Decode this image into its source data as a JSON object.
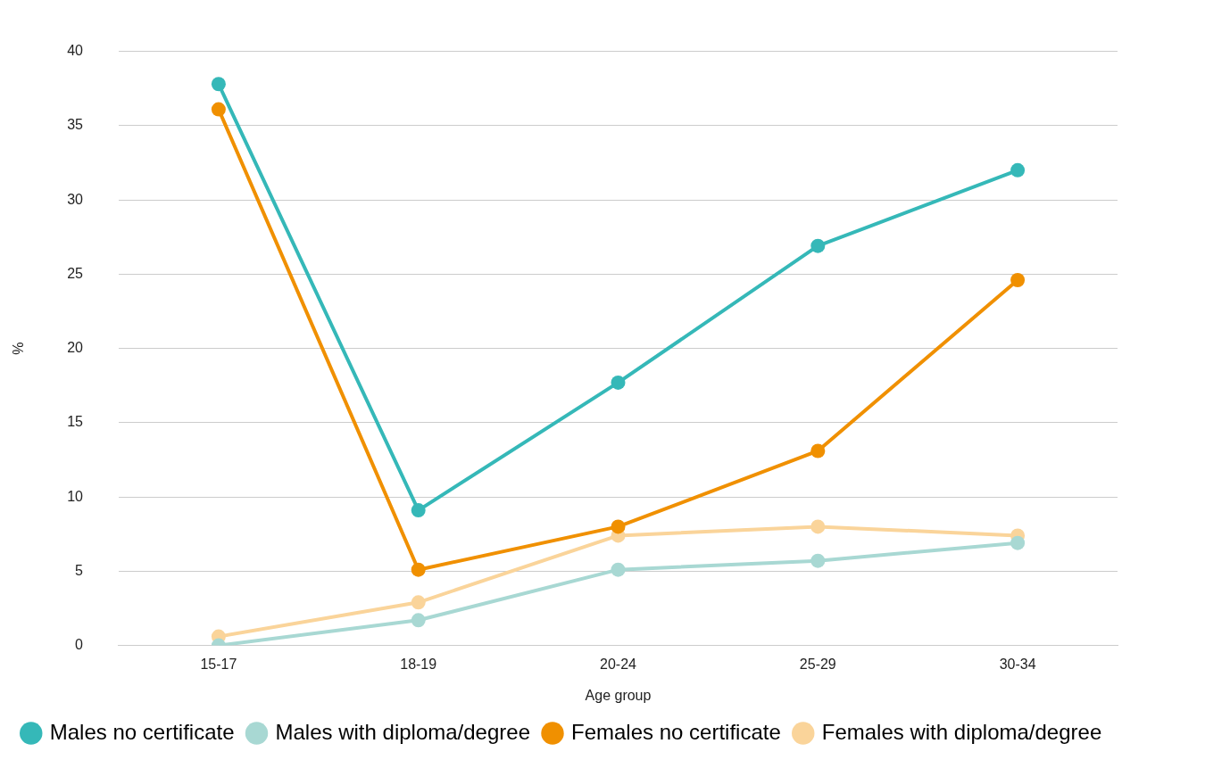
{
  "chart_data": {
    "type": "line",
    "xlabel": "Age group",
    "ylabel": "%",
    "categories": [
      "15-17",
      "18-19",
      "20-24",
      "25-29",
      "30-34"
    ],
    "ylim": [
      0,
      40
    ],
    "yticks": [
      0,
      5,
      10,
      15,
      20,
      25,
      30,
      35,
      40
    ],
    "grid": "y",
    "legend": "bottom",
    "marker": "circle",
    "line_style": "solid",
    "series": [
      {
        "name": "Males no certificate",
        "color": "#35b8b8",
        "values": [
          37.8,
          9.1,
          17.7,
          26.9,
          32.0
        ]
      },
      {
        "name": "Males with diploma/degree",
        "color": "#a8d8d3",
        "values": [
          0,
          1.7,
          5.1,
          5.7,
          6.9
        ]
      },
      {
        "name": "Females no certificate",
        "color": "#f09000",
        "values": [
          36.1,
          5.1,
          8.0,
          13.1,
          24.6
        ]
      },
      {
        "name": "Females with diploma/degree",
        "color": "#fad49a",
        "values": [
          0.6,
          2.9,
          7.4,
          8.0,
          7.4
        ]
      }
    ]
  }
}
